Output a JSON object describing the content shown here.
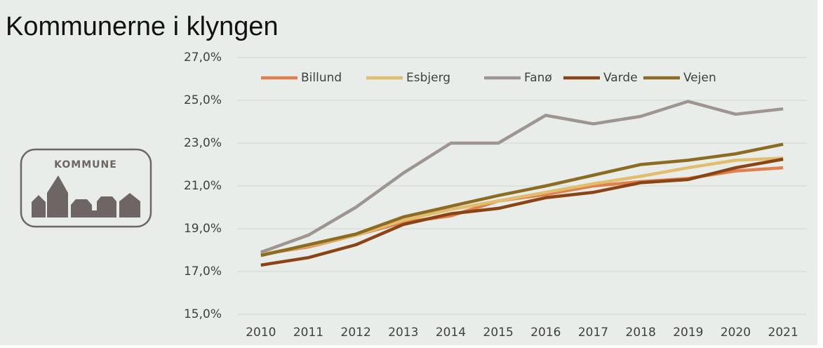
{
  "chart_data": {
    "type": "line",
    "title": "Kommunerne i klyngen",
    "categories": [
      "2010",
      "2011",
      "2012",
      "2013",
      "2014",
      "2015",
      "2016",
      "2017",
      "2018",
      "2019",
      "2020",
      "2021"
    ],
    "series": [
      {
        "name": "Billund",
        "color": "#e0804e",
        "values": [
          17.8,
          18.15,
          18.7,
          19.3,
          19.6,
          20.3,
          20.6,
          21.0,
          21.2,
          21.35,
          21.7,
          21.85
        ]
      },
      {
        "name": "Esbjerg",
        "color": "#e2bd6e",
        "values": [
          17.8,
          18.2,
          18.7,
          19.4,
          19.9,
          20.3,
          20.7,
          21.1,
          21.45,
          21.85,
          22.2,
          22.3
        ]
      },
      {
        "name": "Fanø",
        "color": "#9e9591",
        "values": [
          17.9,
          18.7,
          20.0,
          21.6,
          23.0,
          23.0,
          24.3,
          23.9,
          24.25,
          24.95,
          24.35,
          24.6
        ]
      },
      {
        "name": "Varde",
        "color": "#8a4416",
        "values": [
          17.3,
          17.65,
          18.25,
          19.2,
          19.7,
          19.95,
          20.45,
          20.7,
          21.15,
          21.3,
          21.85,
          22.25
        ]
      },
      {
        "name": "Vejen",
        "color": "#8c6b22",
        "values": [
          17.75,
          18.25,
          18.75,
          19.55,
          20.05,
          20.55,
          21.0,
          21.5,
          22.0,
          22.2,
          22.5,
          22.95
        ]
      }
    ],
    "ylim": [
      15,
      27
    ],
    "yticks": [
      {
        "value": 15,
        "label": "15,0%"
      },
      {
        "value": 17,
        "label": "17,0%"
      },
      {
        "value": 19,
        "label": "19,0%"
      },
      {
        "value": 21,
        "label": "21,0%"
      },
      {
        "value": 23,
        "label": "23,0%"
      },
      {
        "value": 25,
        "label": "25,0%"
      },
      {
        "value": 27,
        "label": "27,0%"
      }
    ],
    "grid": true,
    "legend": "top"
  },
  "icon": {
    "label": "KOMMUNE"
  }
}
